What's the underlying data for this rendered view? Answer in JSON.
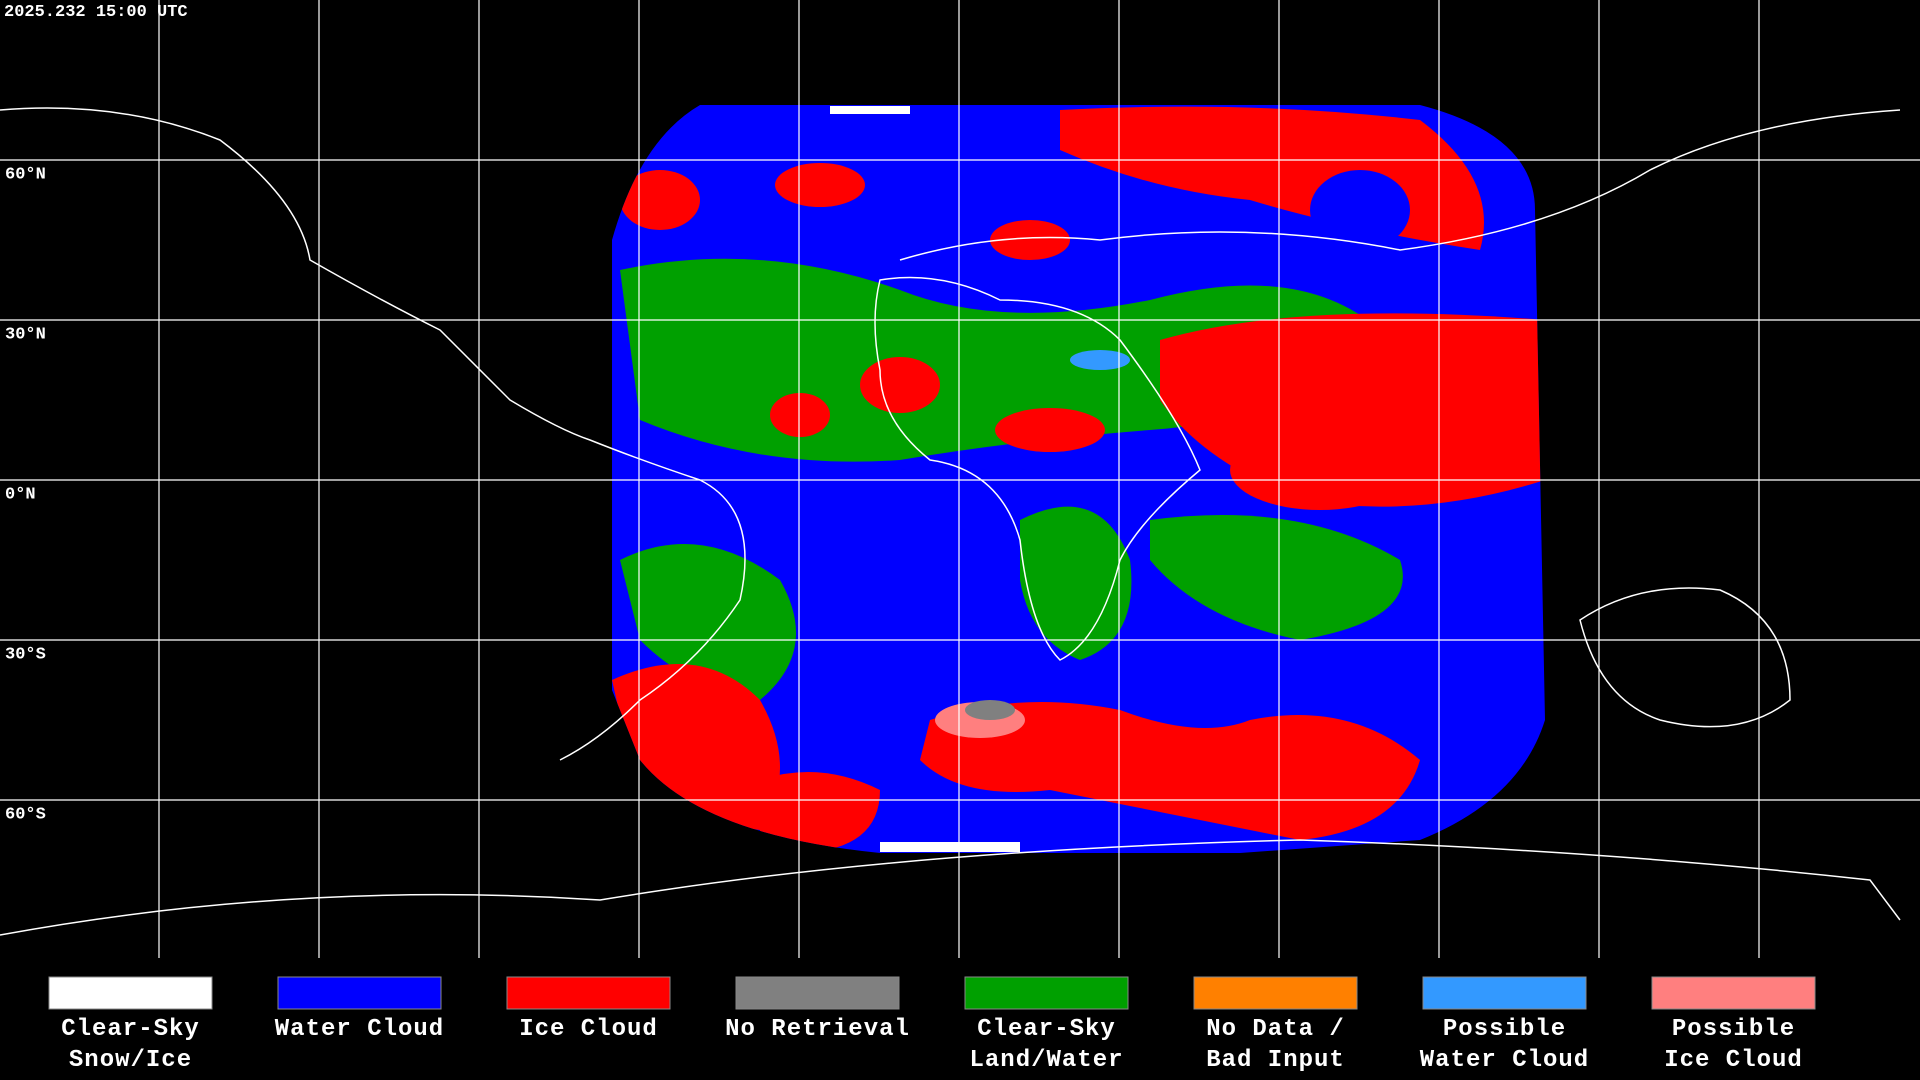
{
  "header": {
    "timestamp": "2025.232 15:00 UTC"
  },
  "latitude_labels": [
    "60°N",
    "30°N",
    "0°N",
    "30°S",
    "60°S"
  ],
  "legend": [
    {
      "lines": [
        "Clear-Sky",
        "Snow/Ice"
      ],
      "color": "#ffffff"
    },
    {
      "lines": [
        "Water Cloud"
      ],
      "color": "#0000ff"
    },
    {
      "lines": [
        "Ice Cloud"
      ],
      "color": "#ff0000"
    },
    {
      "lines": [
        "No Retrieval"
      ],
      "color": "#808080"
    },
    {
      "lines": [
        "Clear-Sky",
        "Land/Water"
      ],
      "color": "#00a000"
    },
    {
      "lines": [
        "No Data /",
        "Bad Input"
      ],
      "color": "#ff8000"
    },
    {
      "lines": [
        "Possible",
        "Water Cloud"
      ],
      "color": "#3399ff"
    },
    {
      "lines": [
        "Possible",
        "Ice Cloud"
      ],
      "color": "#ff7f7f"
    }
  ]
}
